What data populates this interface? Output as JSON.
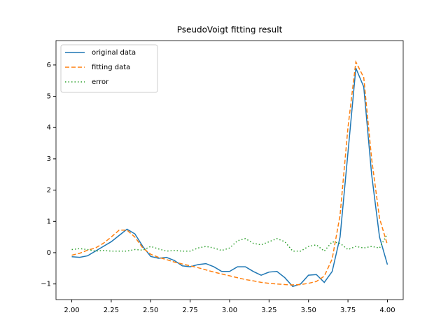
{
  "chart_data": {
    "type": "line",
    "title": "PseudoVoigt fitting result",
    "x": [
      2.0,
      2.05,
      2.1,
      2.15,
      2.2,
      2.25,
      2.3,
      2.35,
      2.4,
      2.45,
      2.5,
      2.55,
      2.6,
      2.65,
      2.7,
      2.75,
      2.8,
      2.85,
      2.9,
      2.95,
      3.0,
      3.05,
      3.1,
      3.15,
      3.2,
      3.25,
      3.3,
      3.35,
      3.4,
      3.45,
      3.5,
      3.55,
      3.6,
      3.65,
      3.7,
      3.75,
      3.8,
      3.85,
      3.9,
      3.95,
      4.0
    ],
    "series": [
      {
        "name": "original data",
        "color": "#1f77b4",
        "dash": "solid",
        "values": [
          -0.13,
          -0.15,
          -0.1,
          0.05,
          0.2,
          0.35,
          0.55,
          0.75,
          0.6,
          0.2,
          -0.12,
          -0.18,
          -0.15,
          -0.25,
          -0.42,
          -0.45,
          -0.38,
          -0.35,
          -0.45,
          -0.6,
          -0.6,
          -0.45,
          -0.45,
          -0.6,
          -0.72,
          -0.62,
          -0.6,
          -0.8,
          -1.08,
          -1.0,
          -0.72,
          -0.7,
          -0.95,
          -0.6,
          0.5,
          3.2,
          5.9,
          5.3,
          2.5,
          0.5,
          -0.38
        ]
      },
      {
        "name": "fitting data",
        "color": "#ff7f0e",
        "dash": "dashed",
        "values": [
          -0.08,
          -0.02,
          0.08,
          0.15,
          0.3,
          0.5,
          0.72,
          0.72,
          0.5,
          0.15,
          -0.05,
          -0.15,
          -0.22,
          -0.3,
          -0.36,
          -0.42,
          -0.48,
          -0.55,
          -0.62,
          -0.68,
          -0.74,
          -0.8,
          -0.86,
          -0.9,
          -0.95,
          -0.98,
          -1.0,
          -1.02,
          -1.03,
          -1.02,
          -0.98,
          -0.92,
          -0.75,
          -0.2,
          1.2,
          4.0,
          6.1,
          5.6,
          3.0,
          1.1,
          0.25
        ]
      },
      {
        "name": "error",
        "color": "#2ca02c",
        "dash": "dotted",
        "values": [
          0.1,
          0.13,
          0.1,
          0.05,
          0.07,
          0.05,
          0.05,
          0.05,
          0.1,
          0.08,
          0.2,
          0.12,
          0.05,
          0.07,
          0.05,
          0.05,
          0.15,
          0.2,
          0.15,
          0.07,
          0.15,
          0.38,
          0.45,
          0.3,
          0.25,
          0.35,
          0.45,
          0.35,
          0.05,
          0.05,
          0.2,
          0.25,
          0.05,
          0.35,
          0.3,
          0.1,
          0.2,
          0.15,
          0.2,
          0.15,
          0.6
        ]
      }
    ],
    "xlim": [
      1.9,
      4.1
    ],
    "ylim": [
      -1.5,
      6.78
    ],
    "xticks": [
      {
        "value": 2.0,
        "label": "2.00"
      },
      {
        "value": 2.25,
        "label": "2.25"
      },
      {
        "value": 2.5,
        "label": "2.50"
      },
      {
        "value": 2.75,
        "label": "2.75"
      },
      {
        "value": 3.0,
        "label": "3.00"
      },
      {
        "value": 3.25,
        "label": "3.25"
      },
      {
        "value": 3.5,
        "label": "3.50"
      },
      {
        "value": 3.75,
        "label": "3.75"
      },
      {
        "value": 4.0,
        "label": "4.00"
      }
    ],
    "yticks": [
      {
        "value": -1,
        "label": "−1"
      },
      0,
      1,
      2,
      3,
      4,
      5,
      6
    ],
    "grid": false,
    "legend": "upper-left"
  }
}
